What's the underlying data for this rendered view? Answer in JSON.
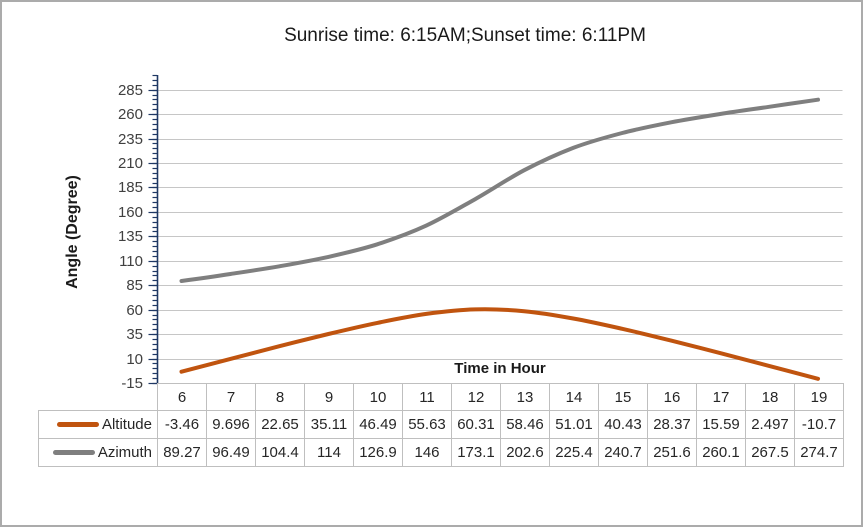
{
  "page": {
    "background": "#FFFFFF",
    "border_color": "#ABABAB"
  },
  "chart_data": {
    "type": "line",
    "title": "Sunrise time: 6:15AM;Sunset time: 6:11PM",
    "xlabel": "Time in Hour",
    "ylabel": "Angle (Degree)",
    "x": [
      6,
      7,
      8,
      9,
      10,
      11,
      12,
      13,
      14,
      15,
      16,
      17,
      18,
      19
    ],
    "series": [
      {
        "name": "Altitude",
        "color": "#C0540F",
        "values": [
          -3.46,
          9.696,
          22.65,
          35.11,
          46.49,
          55.63,
          60.31,
          58.46,
          51.01,
          40.43,
          28.37,
          15.59,
          2.497,
          -10.7
        ]
      },
      {
        "name": "Azimuth",
        "color": "#7F7F7F",
        "values": [
          89.27,
          96.49,
          104.4,
          114,
          126.9,
          146,
          173.1,
          202.6,
          225.4,
          240.7,
          251.6,
          260.1,
          267.5,
          274.7
        ]
      }
    ],
    "ylim": [
      -15,
      300
    ],
    "yticks": [
      -15,
      10,
      35,
      60,
      85,
      110,
      135,
      160,
      185,
      210,
      235,
      260,
      285
    ],
    "minor_tick_step": 5,
    "grid": true,
    "smooth": true,
    "legend_position": "table-left",
    "axis_color": "#1F3864",
    "gridline_color": "#C6C6C6",
    "table_border_color": "#BFBFBF",
    "tick_label_color": "#404040"
  }
}
